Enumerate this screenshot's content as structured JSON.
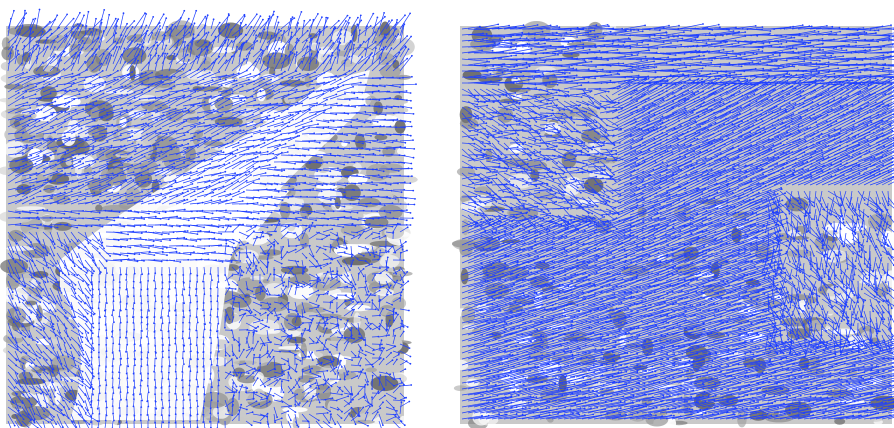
{
  "figure": {
    "panels": [
      {
        "id": "left",
        "description_tag": "vector-field-over-terrain-a"
      },
      {
        "id": "right",
        "description_tag": "vector-field-over-terrain-b"
      }
    ],
    "colors": {
      "vector": "#1f3fff",
      "terrain_dark": "#6f6f6f",
      "terrain_mid": "#9a9a9a",
      "terrain_light": "#c9c9c9",
      "background": "#ffffff"
    }
  }
}
